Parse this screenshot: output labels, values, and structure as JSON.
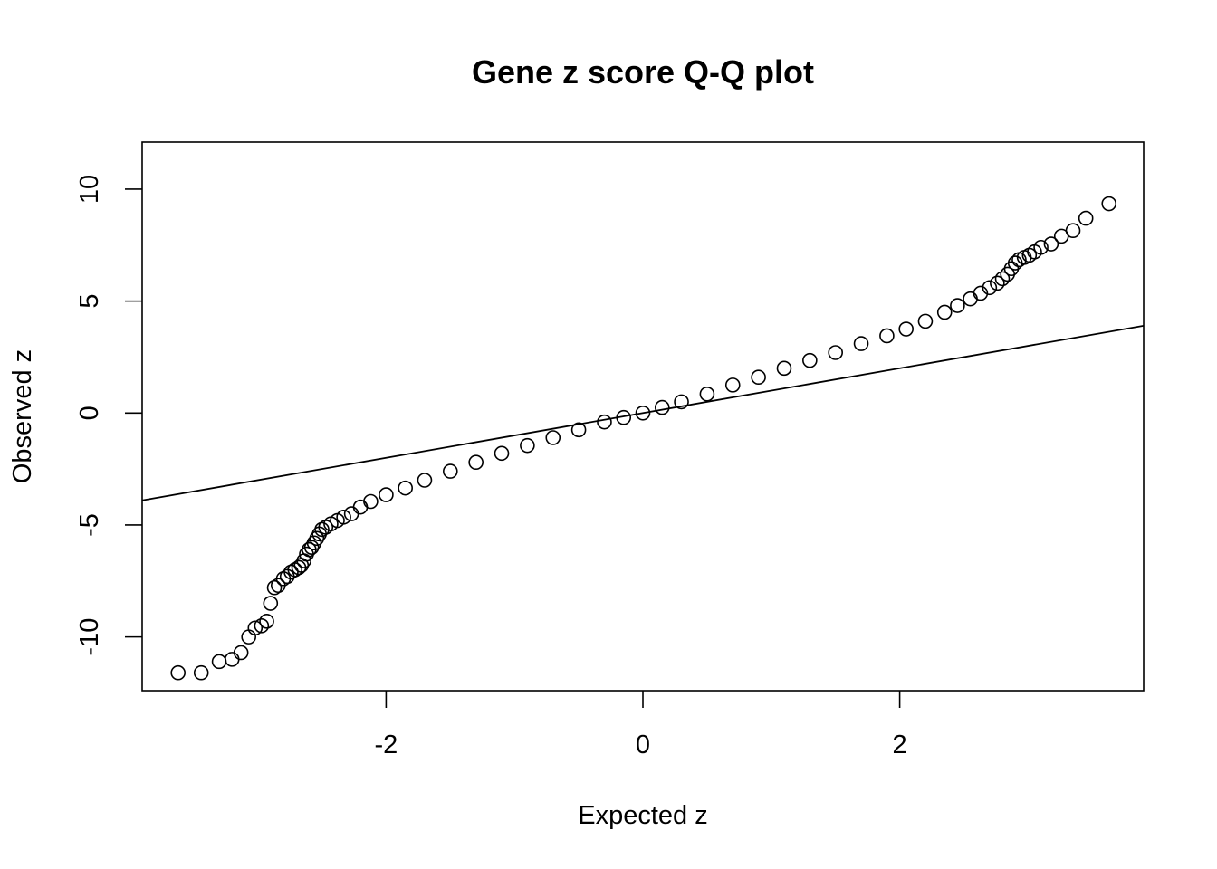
{
  "chart_data": {
    "type": "scatter",
    "title": "Gene z score Q-Q plot",
    "xlabel": "Expected z",
    "ylabel": "Observed z",
    "xlim": [
      -3.9,
      3.9
    ],
    "ylim": [
      -12.4,
      12.1
    ],
    "xticks": [
      -2,
      0,
      2
    ],
    "yticks": [
      -10,
      -5,
      0,
      5,
      10
    ],
    "grid": false,
    "legend": "none",
    "reference_line": {
      "slope": 1,
      "intercept": 0
    },
    "marker": "open-circle",
    "colors": {
      "points": "#000000",
      "line": "#000000",
      "frame": "#000000"
    },
    "series": [
      {
        "points": [
          [
            -3.62,
            -11.6
          ],
          [
            -3.44,
            -11.6
          ],
          [
            -3.3,
            -11.1
          ],
          [
            -3.2,
            -11.0
          ],
          [
            -3.13,
            -10.7
          ],
          [
            -3.07,
            -10.0
          ],
          [
            -3.02,
            -9.6
          ],
          [
            -2.97,
            -9.5
          ],
          [
            -2.93,
            -9.3
          ],
          [
            -2.9,
            -8.5
          ],
          [
            -2.87,
            -7.8
          ],
          [
            -2.84,
            -7.7
          ],
          [
            -2.8,
            -7.4
          ],
          [
            -2.77,
            -7.3
          ],
          [
            -2.74,
            -7.1
          ],
          [
            -2.71,
            -7.0
          ],
          [
            -2.68,
            -6.9
          ],
          [
            -2.66,
            -6.8
          ],
          [
            -2.64,
            -6.6
          ],
          [
            -2.62,
            -6.3
          ],
          [
            -2.6,
            -6.1
          ],
          [
            -2.58,
            -6.0
          ],
          [
            -2.56,
            -5.8
          ],
          [
            -2.54,
            -5.6
          ],
          [
            -2.52,
            -5.4
          ],
          [
            -2.5,
            -5.2
          ],
          [
            -2.47,
            -5.1
          ],
          [
            -2.43,
            -4.95
          ],
          [
            -2.38,
            -4.8
          ],
          [
            -2.33,
            -4.65
          ],
          [
            -2.27,
            -4.5
          ],
          [
            -2.2,
            -4.2
          ],
          [
            -2.12,
            -3.95
          ],
          [
            -2.0,
            -3.65
          ],
          [
            -1.85,
            -3.35
          ],
          [
            -1.7,
            -3.0
          ],
          [
            -1.5,
            -2.6
          ],
          [
            -1.3,
            -2.2
          ],
          [
            -1.1,
            -1.8
          ],
          [
            -0.9,
            -1.45
          ],
          [
            -0.7,
            -1.1
          ],
          [
            -0.5,
            -0.75
          ],
          [
            -0.3,
            -0.4
          ],
          [
            -0.15,
            -0.2
          ],
          [
            0.0,
            0.0
          ],
          [
            0.15,
            0.25
          ],
          [
            0.3,
            0.5
          ],
          [
            0.5,
            0.85
          ],
          [
            0.7,
            1.25
          ],
          [
            0.9,
            1.6
          ],
          [
            1.1,
            2.0
          ],
          [
            1.3,
            2.35
          ],
          [
            1.5,
            2.7
          ],
          [
            1.7,
            3.1
          ],
          [
            1.9,
            3.45
          ],
          [
            2.05,
            3.75
          ],
          [
            2.2,
            4.1
          ],
          [
            2.35,
            4.5
          ],
          [
            2.45,
            4.8
          ],
          [
            2.55,
            5.1
          ],
          [
            2.63,
            5.35
          ],
          [
            2.7,
            5.6
          ],
          [
            2.76,
            5.8
          ],
          [
            2.8,
            6.0
          ],
          [
            2.84,
            6.2
          ],
          [
            2.87,
            6.45
          ],
          [
            2.9,
            6.7
          ],
          [
            2.93,
            6.85
          ],
          [
            2.97,
            6.95
          ],
          [
            3.01,
            7.05
          ],
          [
            3.05,
            7.2
          ],
          [
            3.1,
            7.4
          ],
          [
            3.18,
            7.55
          ],
          [
            3.26,
            7.9
          ],
          [
            3.35,
            8.15
          ],
          [
            3.45,
            8.7
          ],
          [
            3.63,
            9.35
          ]
        ]
      }
    ]
  }
}
